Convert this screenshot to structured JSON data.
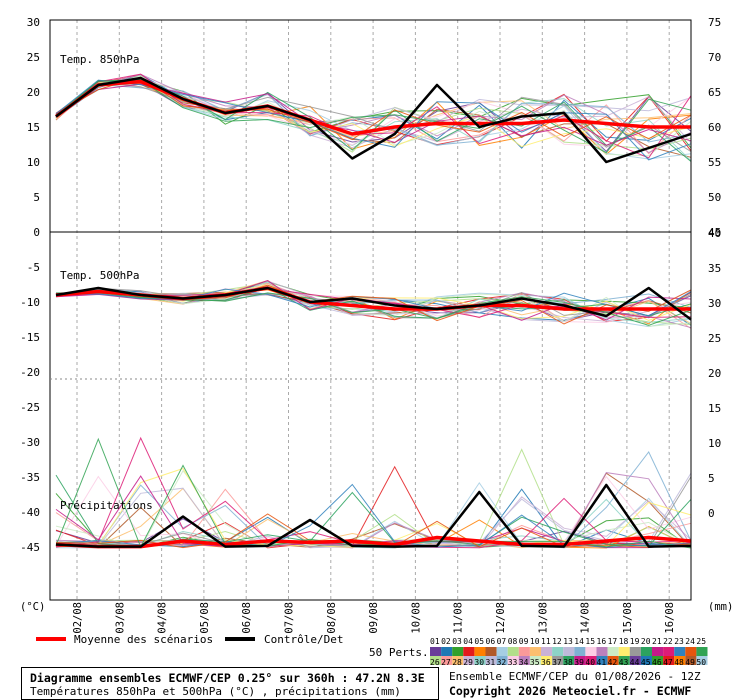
{
  "chart_data": {
    "type": "line",
    "title": "Diagramme ensembles ECMWF/CEP 0.25° sur 360h : 47.2N 8.3E",
    "subtitle": "Températures 850hPa et 500hPa (°C) , précipitations (mm)",
    "run_info": "Ensemble ECMWF/CEP du 01/08/2026 - 12Z",
    "copyright": "Copyright 2026 Meteociel.fr - ECMWF",
    "left_unit": "(°C)",
    "right_unit": "(mm)",
    "x_ticks": [
      "02/08",
      "03/08",
      "04/08",
      "05/08",
      "06/08",
      "07/08",
      "08/08",
      "09/08",
      "10/08",
      "11/08",
      "12/08",
      "13/08",
      "14/08",
      "15/08",
      "16/08"
    ],
    "left_axis_ticks": [
      30,
      25,
      20,
      15,
      10,
      5,
      0,
      -5,
      -10,
      -15,
      -20,
      -25,
      -30,
      -35,
      -40,
      -45
    ],
    "right_axis_ticks": [
      75,
      70,
      65,
      60,
      55,
      50,
      45,
      40,
      35,
      30,
      25,
      20,
      15,
      10,
      5,
      0
    ],
    "panel_labels": [
      "Temp. 850hPa",
      "Temp. 500hPa",
      "Précipitations"
    ],
    "legend": {
      "mean_label": "Moyenne des scénarios",
      "control_label": "Contrôle/Det",
      "perts_label": "50 Perts.",
      "perts_top": [
        "01",
        "02",
        "03",
        "04",
        "05",
        "06",
        "07",
        "08",
        "09",
        "10",
        "11",
        "12",
        "13",
        "14",
        "15",
        "16",
        "17",
        "18",
        "19",
        "20",
        "21",
        "22",
        "23",
        "24",
        "25"
      ],
      "perts_bottom": [
        "26",
        "27",
        "28",
        "29",
        "30",
        "31",
        "32",
        "33",
        "34",
        "35",
        "36",
        "37",
        "38",
        "39",
        "40",
        "41",
        "42",
        "43",
        "44",
        "45",
        "46",
        "47",
        "48",
        "49",
        "50"
      ]
    },
    "colors": {
      "mean": "#ff0000",
      "control": "#000000"
    },
    "series": [
      {
        "name": "Moyenne des scénarios",
        "panel": "t850",
        "x": [
          0,
          1,
          2,
          3,
          4,
          5,
          6,
          7,
          8,
          9,
          10,
          11,
          12,
          13,
          14,
          15
        ],
        "values": [
          16.5,
          21,
          21.5,
          19,
          17,
          18,
          16,
          14,
          15,
          15.5,
          15.5,
          15.5,
          16,
          15.5,
          15,
          15
        ]
      },
      {
        "name": "Contrôle/Det",
        "panel": "t850",
        "x": [
          0,
          1,
          2,
          3,
          4,
          5,
          6,
          7,
          8,
          9,
          10,
          11,
          12,
          13,
          14,
          15
        ],
        "values": [
          16.5,
          21,
          22,
          19,
          17,
          18,
          16,
          10.5,
          14,
          21,
          15,
          16.5,
          17,
          10,
          12,
          14
        ]
      },
      {
        "name": "Moyenne des scénarios",
        "panel": "t500",
        "x": [
          0,
          1,
          2,
          3,
          4,
          5,
          6,
          7,
          8,
          9,
          10,
          11,
          12,
          13,
          14,
          15
        ],
        "values": [
          -9,
          -8.5,
          -9,
          -9.5,
          -9,
          -8,
          -10,
          -10.5,
          -11,
          -11,
          -10.5,
          -10.5,
          -11,
          -11,
          -11,
          -11
        ]
      },
      {
        "name": "Contrôle/Det",
        "panel": "t500",
        "x": [
          0,
          1,
          2,
          3,
          4,
          5,
          6,
          7,
          8,
          9,
          10,
          11,
          12,
          13,
          14,
          15
        ],
        "values": [
          -9,
          -8,
          -9,
          -9.5,
          -9,
          -8,
          -10,
          -9.5,
          -10.5,
          -11,
          -10.5,
          -9.5,
          -10.5,
          -12,
          -8,
          -12.5
        ]
      },
      {
        "name": "Moyenne des scénarios",
        "panel": "precip",
        "x": [
          0,
          1,
          2,
          3,
          4,
          5,
          6,
          7,
          8,
          9,
          10,
          11,
          12,
          13,
          14,
          15
        ],
        "values": [
          0.5,
          0.2,
          0.2,
          1,
          0.5,
          1,
          0.8,
          1,
          0.5,
          1.5,
          1,
          0.5,
          0.5,
          1,
          1.5,
          1
        ]
      },
      {
        "name": "Contrôle/Det",
        "panel": "precip",
        "x": [
          0,
          1,
          2,
          3,
          4,
          5,
          6,
          7,
          8,
          9,
          10,
          11,
          12,
          13,
          14,
          15
        ],
        "values": [
          0.5,
          0.2,
          0.2,
          4.5,
          0.2,
          0.3,
          4,
          0.3,
          0.2,
          0.3,
          8,
          0.3,
          0.2,
          9,
          0.2,
          0.3
        ]
      }
    ]
  }
}
